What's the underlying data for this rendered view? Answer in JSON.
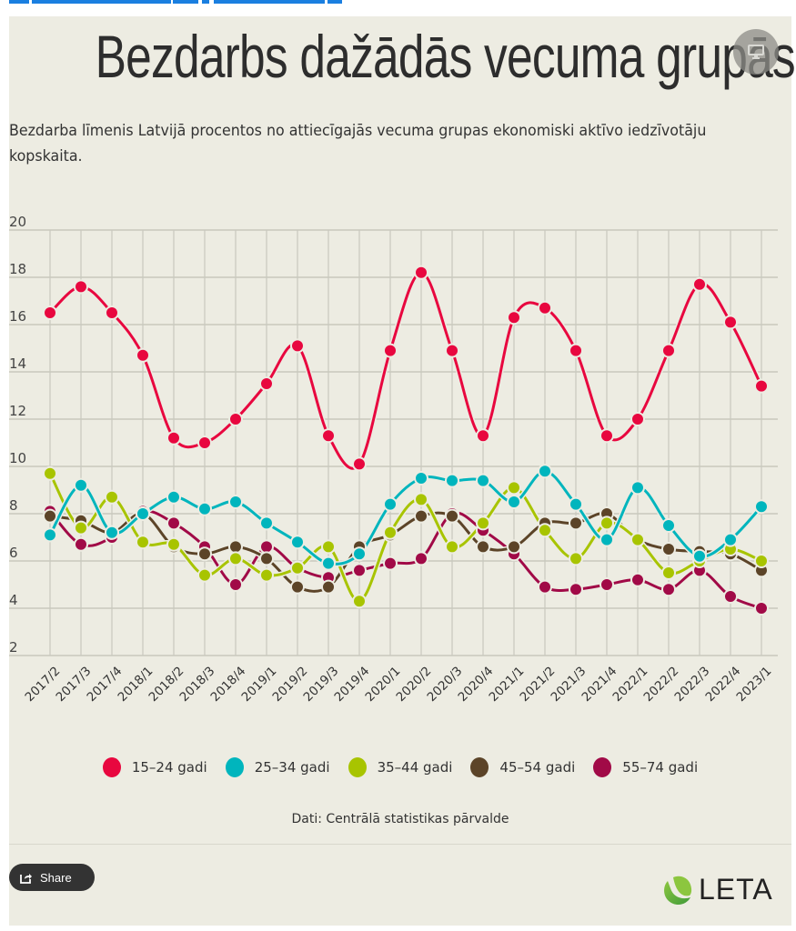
{
  "page": {
    "title": "Bezdarbs dažādās vecuma grupās",
    "subtitle": "Bezdarba līmenis Latvijā procentos no attiecīgajās vecuma grupas ekonomiski aktīvo iedzīvotāju kopskaita.",
    "source": "Dati: Centrālā statistikas pārvalde",
    "share_label": "Share",
    "logo_text": "LETA",
    "fullscreen_icon": "monitor-icon",
    "share_icon": "share-icon",
    "background_color": "#edece2"
  },
  "chart_data": {
    "type": "line",
    "title": "Bezdarbs dažādās vecuma grupās",
    "xlabel": "",
    "ylabel": "",
    "ylim": [
      2,
      20
    ],
    "yticks": [
      2,
      4,
      6,
      8,
      10,
      12,
      14,
      16,
      18,
      20
    ],
    "grid": true,
    "legend_position": "bottom",
    "smooth": true,
    "categories": [
      "2017/2",
      "2017/3",
      "2017/4",
      "2018/1",
      "2018/2",
      "2018/3",
      "2018/4",
      "2019/1",
      "2019/2",
      "2019/3",
      "2019/4",
      "2020/1",
      "2020/2",
      "2020/3",
      "2020/4",
      "2021/1",
      "2021/2",
      "2021/3",
      "2021/4",
      "2022/1",
      "2022/2",
      "2022/3",
      "2022/4",
      "2023/1"
    ],
    "series": [
      {
        "name": "15–24 gadi",
        "color": "#e8073f",
        "values": [
          16.5,
          17.6,
          16.5,
          14.7,
          11.2,
          11.0,
          12.0,
          13.5,
          15.1,
          11.3,
          10.1,
          14.9,
          18.2,
          14.9,
          11.3,
          16.3,
          16.7,
          14.9,
          11.3,
          12.0,
          14.9,
          17.7,
          16.1,
          13.4
        ]
      },
      {
        "name": "25–34 gadi",
        "color": "#00b5bd",
        "values": [
          7.1,
          9.2,
          7.2,
          8.0,
          8.7,
          8.2,
          8.5,
          7.6,
          6.8,
          5.9,
          6.3,
          8.4,
          9.5,
          9.4,
          9.4,
          8.5,
          9.8,
          8.4,
          6.9,
          9.1,
          7.5,
          6.2,
          6.9,
          8.3
        ]
      },
      {
        "name": "35–44 gadi",
        "color": "#a8c400",
        "values": [
          9.7,
          7.4,
          8.7,
          6.8,
          6.7,
          5.4,
          6.1,
          5.4,
          5.7,
          6.6,
          4.3,
          7.2,
          8.6,
          6.6,
          7.6,
          9.1,
          7.3,
          6.1,
          7.6,
          6.9,
          5.5,
          6.0,
          6.5,
          6.0
        ]
      },
      {
        "name": "45–54 gadi",
        "color": "#5c4428",
        "values": [
          7.9,
          7.7,
          7.2,
          8.0,
          6.6,
          6.3,
          6.6,
          6.1,
          4.9,
          4.9,
          6.6,
          7.1,
          7.9,
          7.9,
          6.6,
          6.6,
          7.6,
          7.6,
          8.0,
          6.9,
          6.5,
          6.4,
          6.3,
          5.6
        ]
      },
      {
        "name": "55–74 gadi",
        "color": "#a10a47",
        "values": [
          8.1,
          6.7,
          7.0,
          8.1,
          7.6,
          6.6,
          5.0,
          6.6,
          5.7,
          5.3,
          5.6,
          5.9,
          6.1,
          8.0,
          7.3,
          6.3,
          4.9,
          4.8,
          5.0,
          5.2,
          4.8,
          5.6,
          4.5,
          4.0
        ]
      }
    ]
  }
}
